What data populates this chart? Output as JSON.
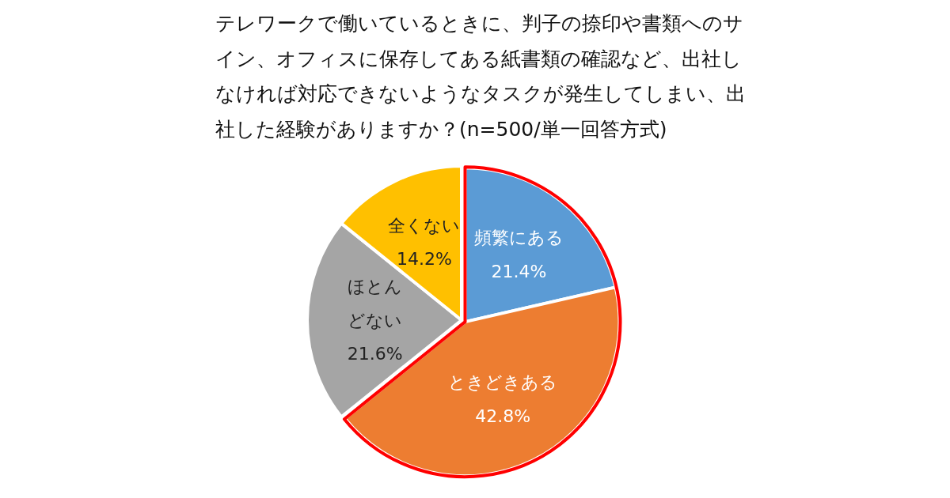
{
  "chart_data": {
    "type": "pie",
    "title": "テレワークで働いているときに、判子の捺印や書類へのサイン、オフィスに保存してある紙書類の確認など、出社しなければ対応できないようなタスクが発生してしまい、出社した経験がありますか？(n=500/単一回答方式)",
    "categories": [
      "頻繁にある",
      "ときどきある",
      "ほとんどない",
      "全くない"
    ],
    "values": [
      21.4,
      42.8,
      21.6,
      14.2
    ],
    "colors": [
      "#5b9bd5",
      "#ed7d31",
      "#a5a5a5",
      "#ffc000"
    ],
    "value_labels": [
      "21.4%",
      "42.8%",
      "21.6%",
      "14.2%"
    ]
  }
}
